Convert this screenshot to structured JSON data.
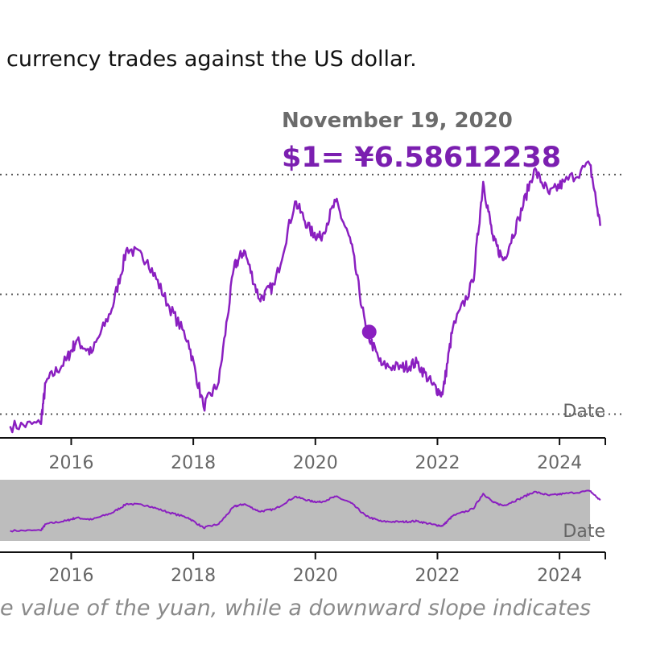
{
  "intro_text": "currency trades against the US dollar.",
  "caption_text": "e value of the yuan, while a downward slope indicates",
  "tooltip": {
    "date": "November 19, 2020",
    "value": "$1= ¥6.58612238"
  },
  "colors": {
    "line": "#8a1fc0",
    "brush": "#bdbdbd",
    "axis": "#111111",
    "grid": "#555555"
  },
  "chart_data": {
    "type": "line",
    "xlabel": "Date",
    "x_range": [
      "2014-11",
      "2024-10"
    ],
    "x_ticks": [
      "2016",
      "2018",
      "2020",
      "2022",
      "2024"
    ],
    "y_range": [
      6.1,
      7.45
    ],
    "y_gridlines": [
      6.25,
      6.74,
      7.23
    ],
    "series": [
      {
        "values": [
          {
            "x": "2015-01",
            "y": 6.2
          },
          {
            "x": "2015-07",
            "y": 6.21
          },
          {
            "x": "2015-08",
            "y": 6.38
          },
          {
            "x": "2015-12",
            "y": 6.47
          },
          {
            "x": "2016-02",
            "y": 6.55
          },
          {
            "x": "2016-05",
            "y": 6.5
          },
          {
            "x": "2016-09",
            "y": 6.68
          },
          {
            "x": "2016-12",
            "y": 6.93
          },
          {
            "x": "2017-04",
            "y": 6.88
          },
          {
            "x": "2017-08",
            "y": 6.7
          },
          {
            "x": "2017-12",
            "y": 6.55
          },
          {
            "x": "2018-03",
            "y": 6.28
          },
          {
            "x": "2018-06",
            "y": 6.38
          },
          {
            "x": "2018-09",
            "y": 6.85
          },
          {
            "x": "2018-11",
            "y": 6.92
          },
          {
            "x": "2019-02",
            "y": 6.72
          },
          {
            "x": "2019-05",
            "y": 6.78
          },
          {
            "x": "2019-09",
            "y": 7.12
          },
          {
            "x": "2019-12",
            "y": 7.0
          },
          {
            "x": "2020-02",
            "y": 6.97
          },
          {
            "x": "2020-05",
            "y": 7.12
          },
          {
            "x": "2020-08",
            "y": 6.95
          },
          {
            "x": "2020-11",
            "y": 6.59
          },
          {
            "x": "2021-02",
            "y": 6.45
          },
          {
            "x": "2021-06",
            "y": 6.44
          },
          {
            "x": "2021-09",
            "y": 6.46
          },
          {
            "x": "2021-12",
            "y": 6.37
          },
          {
            "x": "2022-02",
            "y": 6.33
          },
          {
            "x": "2022-04",
            "y": 6.6
          },
          {
            "x": "2022-08",
            "y": 6.79
          },
          {
            "x": "2022-10",
            "y": 7.2
          },
          {
            "x": "2022-12",
            "y": 6.96
          },
          {
            "x": "2023-02",
            "y": 6.88
          },
          {
            "x": "2023-05",
            "y": 7.05
          },
          {
            "x": "2023-08",
            "y": 7.25
          },
          {
            "x": "2023-11",
            "y": 7.15
          },
          {
            "x": "2024-02",
            "y": 7.2
          },
          {
            "x": "2024-07",
            "y": 7.27
          },
          {
            "x": "2024-09",
            "y": 7.02
          }
        ]
      }
    ],
    "tooltip_point": {
      "x": "2020-11-19",
      "y": 6.58612238
    },
    "brush_range": [
      "2014-11",
      "2024-07"
    ],
    "grid": true
  }
}
